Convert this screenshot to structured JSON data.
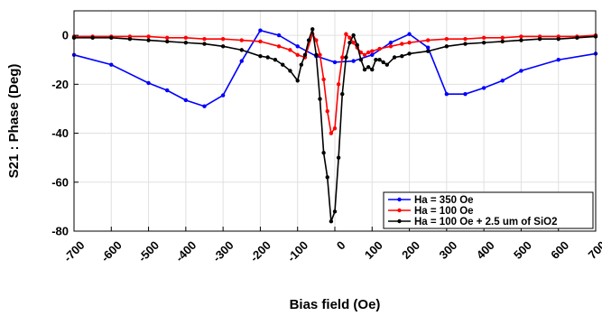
{
  "chart_data": {
    "type": "line",
    "title": "",
    "xlabel": "Bias field (Oe)",
    "ylabel": "S21 : Phase (Deg)",
    "xlim": [
      -700,
      700
    ],
    "ylim": [
      -80,
      10
    ],
    "xticks": [
      -700,
      -600,
      -500,
      -400,
      -300,
      -200,
      -100,
      0,
      100,
      200,
      300,
      400,
      500,
      600,
      700
    ],
    "yticks": [
      -80,
      -60,
      -40,
      -20,
      0
    ],
    "grid": true,
    "legend_position": "bottom-right",
    "series": [
      {
        "name": "Ha = 350 Oe",
        "color": "#0000ff",
        "x": [
          -700,
          -600,
          -500,
          -450,
          -400,
          -350,
          -300,
          -250,
          -200,
          -150,
          -100,
          -50,
          0,
          50,
          100,
          150,
          200,
          250,
          300,
          350,
          400,
          450,
          500,
          600,
          700
        ],
        "y": [
          -8,
          -12,
          -19.5,
          -22.5,
          -26.5,
          -29,
          -24.5,
          -10.5,
          2,
          0,
          -4.5,
          -8.5,
          -11,
          -10.5,
          -8,
          -3,
          0.5,
          -5,
          -24,
          -24,
          -21.5,
          -18.5,
          -14.5,
          -10,
          -7.5
        ]
      },
      {
        "name": "Ha = 100 Oe",
        "color": "#ff0000",
        "x": [
          -700,
          -650,
          -600,
          -550,
          -500,
          -450,
          -400,
          -350,
          -300,
          -250,
          -200,
          -150,
          -120,
          -100,
          -80,
          -60,
          -50,
          -40,
          -30,
          -20,
          -10,
          0,
          10,
          20,
          30,
          40,
          50,
          60,
          70,
          80,
          90,
          100,
          120,
          150,
          180,
          200,
          250,
          300,
          350,
          400,
          450,
          500,
          550,
          600,
          650,
          700
        ],
        "y": [
          -0.5,
          -0.5,
          -0.5,
          -0.5,
          -0.5,
          -1,
          -1,
          -1.5,
          -1.5,
          -2,
          -2.5,
          -4.5,
          -6,
          -8,
          -9,
          0.5,
          -2,
          -8,
          -18,
          -31,
          -40,
          -38,
          -20,
          -9,
          0.5,
          -1,
          -3,
          -5,
          -7,
          -8,
          -7,
          -6.5,
          -5.5,
          -4.5,
          -3.5,
          -3,
          -2,
          -1.5,
          -1.5,
          -1,
          -1,
          -0.5,
          -0.5,
          -0.5,
          -0.5,
          0
        ]
      },
      {
        "name": "Ha = 100 Oe + 2.5 um of SiO2",
        "color": "#000000",
        "x": [
          -700,
          -650,
          -600,
          -550,
          -500,
          -450,
          -400,
          -350,
          -300,
          -250,
          -200,
          -180,
          -160,
          -140,
          -120,
          -100,
          -90,
          -80,
          -70,
          -60,
          -50,
          -40,
          -30,
          -20,
          -10,
          0,
          10,
          20,
          30,
          40,
          50,
          60,
          70,
          80,
          90,
          100,
          110,
          120,
          130,
          140,
          160,
          180,
          200,
          250,
          300,
          350,
          400,
          450,
          500,
          550,
          600,
          650,
          700
        ],
        "y": [
          -1,
          -1,
          -1,
          -1.5,
          -2,
          -2.5,
          -3,
          -3.5,
          -4.5,
          -6,
          -8.5,
          -9,
          -10,
          -12,
          -14.5,
          -18.5,
          -12,
          -8,
          -2,
          2.5,
          -8,
          -26,
          -48,
          -58,
          -76,
          -72,
          -50,
          -24,
          -9,
          -3,
          0,
          -4,
          -10,
          -14,
          -13,
          -14,
          -10,
          -10,
          -11,
          -12,
          -9,
          -8.5,
          -7.5,
          -6.5,
          -4.5,
          -3.5,
          -3,
          -2.5,
          -2,
          -1.5,
          -1.5,
          -1,
          -0.5
        ]
      }
    ]
  }
}
